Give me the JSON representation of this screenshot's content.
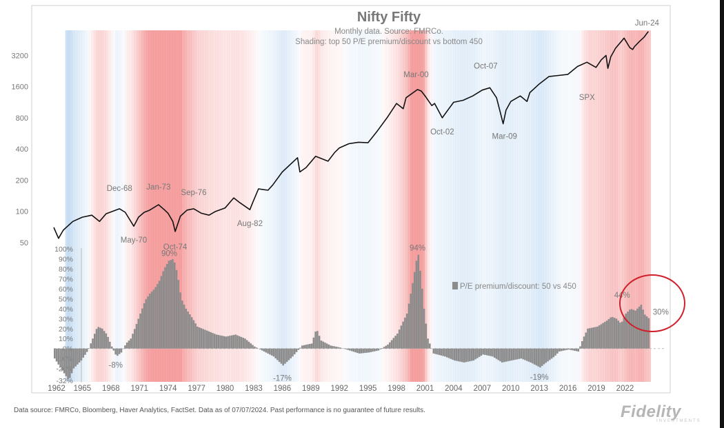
{
  "chart_data": {
    "type": "line",
    "title": "Nifty Fifty",
    "subtitle_line1": "Monthly data.  Source: FMRCo.",
    "subtitle_line2": "Shading: top 50 P/E premium/discount vs bottom 450",
    "xlabel": "",
    "ylabel": "",
    "x_tick_labels": [
      "1962",
      "1965",
      "1968",
      "1971",
      "1974",
      "1977",
      "1980",
      "1983",
      "1986",
      "1989",
      "1992",
      "1995",
      "1998",
      "2001",
      "2004",
      "2007",
      "2010",
      "2013",
      "2016",
      "2019",
      "2022"
    ],
    "x_range": [
      1962,
      2024.5
    ],
    "upper_panel": {
      "scale": "log",
      "ylim": [
        50,
        5500
      ],
      "y_tick_labels": [
        "50",
        "100",
        "200",
        "400",
        "800",
        "1600",
        "3200"
      ],
      "series": [
        {
          "name": "SPX",
          "color": "#111111",
          "x": [
            1962.0,
            1962.5,
            1963.0,
            1964.0,
            1965.0,
            1966.0,
            1966.8,
            1967.5,
            1968.9,
            1969.5,
            1970.4,
            1970.9,
            1971.5,
            1972.0,
            1973.0,
            1973.6,
            1974.0,
            1974.5,
            1974.75,
            1975.3,
            1976.0,
            1976.7,
            1977.5,
            1978.3,
            1979.0,
            1980.0,
            1980.9,
            1981.5,
            1982.6,
            1982.9,
            1983.5,
            1984.5,
            1985.0,
            1986.0,
            1987.6,
            1987.85,
            1988.5,
            1989.5,
            1990.8,
            1991.5,
            1992.0,
            1993.0,
            1994.0,
            1995.0,
            1996.0,
            1997.0,
            1998.0,
            1998.7,
            1999.0,
            2000.2,
            2000.6,
            2001.0,
            2001.7,
            2002.0,
            2002.8,
            2003.5,
            2004.0,
            2005.0,
            2006.0,
            2007.0,
            2007.8,
            2008.5,
            2008.9,
            2009.2,
            2009.5,
            2010.0,
            2011.0,
            2011.7,
            2012.0,
            2013.0,
            2014.0,
            2015.0,
            2016.0,
            2017.0,
            2018.0,
            2018.95,
            2019.5,
            2020.0,
            2020.2,
            2020.5,
            2021.0,
            2021.9,
            2022.5,
            2022.8,
            2023.0,
            2023.5,
            2024.0,
            2024.45
          ],
          "values": [
            70,
            55,
            66,
            80,
            88,
            92,
            80,
            95,
            106,
            98,
            72,
            88,
            98,
            102,
            116,
            104,
            96,
            80,
            64,
            90,
            103,
            106,
            96,
            92,
            100,
            108,
            135,
            122,
            104,
            122,
            165,
            160,
            180,
            240,
            330,
            240,
            265,
            340,
            305,
            370,
            410,
            450,
            465,
            460,
            600,
            800,
            1100,
            980,
            1250,
            1500,
            1450,
            1300,
            1050,
            1100,
            800,
            980,
            1130,
            1180,
            1300,
            1480,
            1560,
            1250,
            900,
            700,
            950,
            1150,
            1300,
            1150,
            1400,
            1700,
            2000,
            2050,
            2100,
            2500,
            2750,
            2450,
            2900,
            3200,
            2400,
            3100,
            3750,
            4700,
            3800,
            3650,
            3900,
            4350,
            4800,
            5450
          ]
        }
      ],
      "annotations": [
        {
          "text": "Dec-68",
          "x": 1968.9
        },
        {
          "text": "May-70",
          "x": 1970.4
        },
        {
          "text": "Jan-73",
          "x": 1973.0
        },
        {
          "text": "Oct-74",
          "x": 1974.75
        },
        {
          "text": "Sep-76",
          "x": 1976.7
        },
        {
          "text": "Aug-82",
          "x": 1982.6
        },
        {
          "text": "Mar-00",
          "x": 2000.2
        },
        {
          "text": "Oct-02",
          "x": 2002.8
        },
        {
          "text": "Oct-07",
          "x": 2007.8
        },
        {
          "text": "Mar-09",
          "x": 2009.2
        },
        {
          "text": "SPX",
          "x": 2018.0
        },
        {
          "text": "Jun-24",
          "x": 2024.45
        }
      ]
    },
    "lower_panel": {
      "type": "bar",
      "ylim": [
        -32,
        100
      ],
      "y_tick_labels": [
        "100%",
        "90%",
        "80%",
        "70%",
        "60%",
        "50%",
        "40%",
        "30%",
        "20%",
        "10%",
        "0%",
        "-10%",
        "-20%",
        "-32%"
      ],
      "legend_label": "P/E premium/discount: 50 vs 450",
      "legend_position": "right",
      "bar_color": "#8c8c8c",
      "series": [
        {
          "name": "P/E premium/discount: 50 vs 450",
          "x": [
            1962.0,
            1962.8,
            1963.5,
            1964.0,
            1964.8,
            1965.5,
            1966.0,
            1966.5,
            1967.0,
            1967.5,
            1968.0,
            1968.5,
            1969.0,
            1969.5,
            1970.0,
            1970.5,
            1971.0,
            1971.5,
            1972.0,
            1972.5,
            1973.0,
            1973.5,
            1974.0,
            1974.5,
            1974.9,
            1975.3,
            1975.8,
            1976.5,
            1977.0,
            1978.0,
            1979.0,
            1980.0,
            1981.0,
            1982.0,
            1983.0,
            1984.0,
            1985.0,
            1986.0,
            1987.0,
            1988.0,
            1989.0,
            1989.5,
            1990.0,
            1991.0,
            1992.0,
            1993.0,
            1994.0,
            1995.0,
            1996.0,
            1997.0,
            1998.0,
            1999.0,
            1999.5,
            2000.0,
            2000.2,
            2000.5,
            2000.8,
            2001.2,
            2001.8,
            2003.0,
            2004.0,
            2005.0,
            2006.0,
            2007.0,
            2008.0,
            2009.0,
            2010.0,
            2011.0,
            2012.0,
            2013.0,
            2013.5,
            2014.5,
            2015.0,
            2016.0,
            2017.0,
            2017.5,
            2018.0,
            2019.0,
            2020.0,
            2020.5,
            2021.0,
            2021.5,
            2022.0,
            2022.5,
            2023.0,
            2023.6,
            2024.0,
            2024.45
          ],
          "values": [
            -10,
            -22,
            -32,
            -20,
            -12,
            -2,
            10,
            22,
            20,
            14,
            2,
            -8,
            -4,
            5,
            10,
            22,
            35,
            48,
            55,
            60,
            68,
            80,
            88,
            90,
            75,
            50,
            40,
            30,
            22,
            18,
            14,
            12,
            14,
            10,
            2,
            -3,
            -8,
            -17,
            -8,
            3,
            5,
            20,
            8,
            3,
            1,
            -2,
            -5,
            -4,
            -2,
            4,
            15,
            35,
            60,
            88,
            94,
            70,
            40,
            10,
            -5,
            -8,
            -12,
            -14,
            -12,
            -6,
            -8,
            -14,
            -12,
            -10,
            -14,
            -19,
            -15,
            -8,
            -3,
            -1,
            -3,
            10,
            20,
            22,
            28,
            32,
            30,
            25,
            35,
            40,
            38,
            44,
            34,
            30
          ]
        }
      ],
      "annotations": [
        {
          "text": "90%",
          "x": 1975.0
        },
        {
          "text": "-8%",
          "x": 1968.5
        },
        {
          "text": "-17%",
          "x": 1986.0
        },
        {
          "text": "94%",
          "x": 2000.2
        },
        {
          "text": "-19%",
          "x": 2013.0
        },
        {
          "text": "44%",
          "x": 2023.0
        },
        {
          "text": "30%",
          "x": 2024.45
        }
      ]
    },
    "shading": {
      "description_source": "top 50 P/E premium/discount vs bottom 450",
      "positive_color": "#f28a8a",
      "negative_color": "#8fbbe6"
    }
  },
  "footnote": "Data source: FMRCo, Bloomberg, Haver Analytics, FactSet. Data as of 07/07/2024. Past performance is no guarantee of future results.",
  "logo": {
    "text": "Fidelity",
    "subtext": "INVESTMENTS"
  },
  "highlight_color": "#d0202a"
}
